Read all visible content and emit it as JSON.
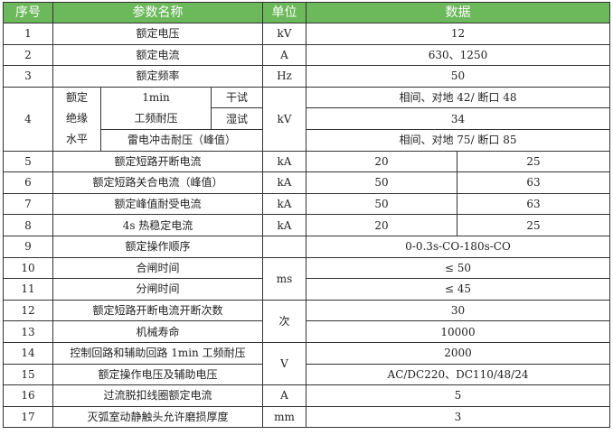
{
  "header": {
    "no": "序号",
    "name": "参数名称",
    "unit": "单位",
    "data": "数据"
  },
  "header_color": "#6cb95c",
  "rows": [
    {
      "no": "1",
      "name": "额定电压",
      "unit": "kV",
      "value": "12"
    },
    {
      "no": "2",
      "name": "额定电流",
      "unit": "A",
      "value": "630、1250"
    },
    {
      "no": "3",
      "name": "额定频率",
      "unit": "Hz",
      "value": "50"
    },
    {
      "no": "4",
      "group_l1": "额定",
      "group_l2": "绝缘",
      "group_l3": "水平",
      "sub1_l1": "1min",
      "sub1_l2": "工频耐压",
      "dry": "干试",
      "wet": "湿试",
      "sub2": "雷电冲击耐压（峰值）",
      "unit": "kV",
      "dry_value": "相间、对地 42/ 断口 48",
      "wet_value": "34",
      "impulse_value": "相间、对地 75/ 断口 85"
    },
    {
      "no": "5",
      "name": "额定短路开断电流",
      "unit": "kA",
      "v1": "20",
      "v2": "25"
    },
    {
      "no": "6",
      "name": "额定短路关合电流（峰值）",
      "unit": "kA",
      "v1": "50",
      "v2": "63"
    },
    {
      "no": "7",
      "name": "额定峰值耐受电流",
      "unit": "kA",
      "v1": "50",
      "v2": "63"
    },
    {
      "no": "8",
      "name": "4s 热稳定电流",
      "unit": "kA",
      "v1": "20",
      "v2": "25"
    },
    {
      "no": "9",
      "name": "额定操作顺序",
      "unit": "",
      "value": "0-0.3s-CO-180s-CO"
    },
    {
      "no": "10",
      "name": "合闸时间",
      "unit": "ms",
      "value": "≤ 50"
    },
    {
      "no": "11",
      "name": "分闸时间",
      "value": "≤ 45"
    },
    {
      "no": "12",
      "name": "额定短路开断电流开断次数",
      "unit": "次",
      "value": "30"
    },
    {
      "no": "13",
      "name": "机械寿命",
      "value": "10000"
    },
    {
      "no": "14",
      "name": "控制回路和辅助回路 1min 工频耐压",
      "unit": "V",
      "value": "2000"
    },
    {
      "no": "15",
      "name": "额定操作电压及辅助电压",
      "value": "AC/DC220、DC110/48/24"
    },
    {
      "no": "16",
      "name": "过流脱扣线圈额定电流",
      "unit": "A",
      "value": "5"
    },
    {
      "no": "17",
      "name": "灭弧室动静触头允许磨损厚度",
      "unit": "mm",
      "value": "3"
    }
  ]
}
